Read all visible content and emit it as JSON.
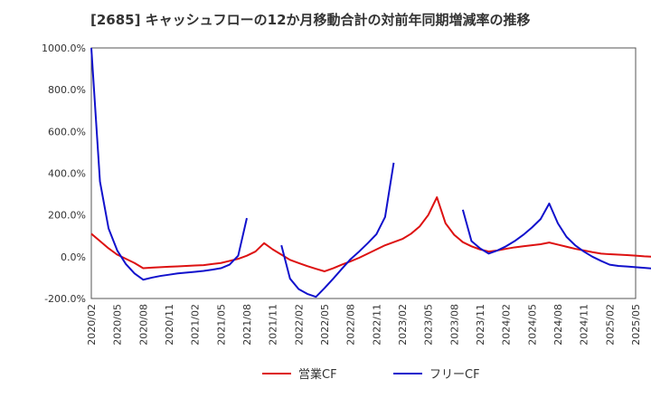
{
  "chart_data": {
    "type": "line",
    "title": "[2685]  キャッシュフローの12か月移動合計の対前年同期増減率の推移",
    "xlabel": "",
    "ylabel": "",
    "ylim": [
      -200,
      1000
    ],
    "yticks": [
      -200,
      0,
      200,
      400,
      600,
      800,
      1000
    ],
    "ytick_labels": [
      "-200.0%",
      "0.0%",
      "200.0%",
      "400.0%",
      "600.0%",
      "800.0%",
      "1000.0%"
    ],
    "xtick_labels": [
      "2020/02",
      "2020/05",
      "2020/08",
      "2020/11",
      "2021/02",
      "2021/05",
      "2021/08",
      "2021/11",
      "2022/02",
      "2022/05",
      "2022/08",
      "2022/11",
      "2023/02",
      "2023/05",
      "2023/08",
      "2023/11",
      "2024/02",
      "2024/05",
      "2024/08",
      "2024/11",
      "2025/02",
      "2025/05"
    ],
    "grid": true,
    "legend_position": "bottom",
    "series": [
      {
        "name": "営業CF",
        "color": "#dd1111",
        "points": [
          [
            0,
            110
          ],
          [
            1,
            75
          ],
          [
            2,
            40
          ],
          [
            3,
            10
          ],
          [
            4,
            -10
          ],
          [
            5,
            -30
          ],
          [
            6,
            -55
          ],
          [
            7,
            -52
          ],
          [
            8,
            -50
          ],
          [
            9,
            -48
          ],
          [
            10,
            -46
          ],
          [
            11,
            -44
          ],
          [
            12,
            -42
          ],
          [
            13,
            -40
          ],
          [
            14,
            -35
          ],
          [
            15,
            -30
          ],
          [
            16,
            -20
          ],
          [
            17,
            -10
          ],
          [
            18,
            5
          ],
          [
            19,
            25
          ],
          [
            20,
            65
          ],
          [
            21,
            35
          ],
          [
            22,
            10
          ],
          [
            23,
            -15
          ],
          [
            24,
            -30
          ],
          [
            25,
            -45
          ],
          [
            26,
            -58
          ],
          [
            27,
            -70
          ],
          [
            28,
            -55
          ],
          [
            29,
            -38
          ],
          [
            30,
            -22
          ],
          [
            31,
            -5
          ],
          [
            32,
            15
          ],
          [
            33,
            35
          ],
          [
            34,
            55
          ],
          [
            35,
            70
          ],
          [
            36,
            85
          ],
          [
            37,
            110
          ],
          [
            38,
            145
          ],
          [
            39,
            200
          ],
          [
            40,
            285
          ],
          [
            41,
            160
          ],
          [
            42,
            105
          ],
          [
            43,
            70
          ],
          [
            44,
            50
          ],
          [
            45,
            35
          ],
          [
            46,
            25
          ],
          [
            47,
            30
          ],
          [
            48,
            38
          ],
          [
            49,
            45
          ],
          [
            50,
            50
          ],
          [
            51,
            55
          ],
          [
            52,
            60
          ],
          [
            53,
            68
          ],
          [
            54,
            58
          ],
          [
            55,
            48
          ],
          [
            56,
            38
          ],
          [
            57,
            30
          ],
          [
            58,
            22
          ],
          [
            59,
            15
          ],
          [
            60,
            12
          ],
          [
            61,
            10
          ],
          [
            62,
            8
          ],
          [
            63,
            5
          ],
          [
            64,
            2
          ],
          [
            65,
            0
          ],
          [
            66,
            -2
          ]
        ]
      },
      {
        "name": "フリーCF",
        "color": "#1111cc",
        "segments": [
          [
            [
              0,
              1000
            ],
            [
              1,
              360
            ],
            [
              2,
              135
            ],
            [
              3,
              30
            ],
            [
              4,
              -35
            ],
            [
              5,
              -80
            ],
            [
              6,
              -110
            ],
            [
              7,
              -100
            ],
            [
              8,
              -92
            ],
            [
              9,
              -86
            ],
            [
              10,
              -80
            ],
            [
              11,
              -76
            ],
            [
              12,
              -72
            ],
            [
              13,
              -68
            ],
            [
              14,
              -62
            ],
            [
              15,
              -55
            ],
            [
              16,
              -38
            ],
            [
              17,
              5
            ],
            [
              18,
              185
            ]
          ],
          [
            [
              22,
              55
            ],
            [
              23,
              -105
            ],
            [
              24,
              -155
            ],
            [
              25,
              -178
            ],
            [
              26,
              -192
            ],
            [
              27,
              -150
            ],
            [
              28,
              -105
            ],
            [
              29,
              -58
            ],
            [
              30,
              -12
            ],
            [
              31,
              25
            ],
            [
              32,
              65
            ],
            [
              33,
              108
            ],
            [
              34,
              190
            ],
            [
              35,
              450
            ]
          ],
          [
            [
              43,
              225
            ],
            [
              44,
              75
            ],
            [
              45,
              40
            ],
            [
              46,
              15
            ],
            [
              47,
              30
            ],
            [
              48,
              50
            ],
            [
              49,
              75
            ],
            [
              50,
              105
            ],
            [
              51,
              140
            ],
            [
              52,
              180
            ],
            [
              53,
              255
            ],
            [
              54,
              160
            ],
            [
              55,
              95
            ],
            [
              56,
              55
            ],
            [
              57,
              25
            ],
            [
              58,
              0
            ],
            [
              59,
              -20
            ],
            [
              60,
              -38
            ],
            [
              61,
              -44
            ],
            [
              62,
              -47
            ],
            [
              63,
              -50
            ],
            [
              64,
              -53
            ],
            [
              65,
              -57
            ],
            [
              66,
              -60
            ]
          ]
        ]
      }
    ]
  }
}
